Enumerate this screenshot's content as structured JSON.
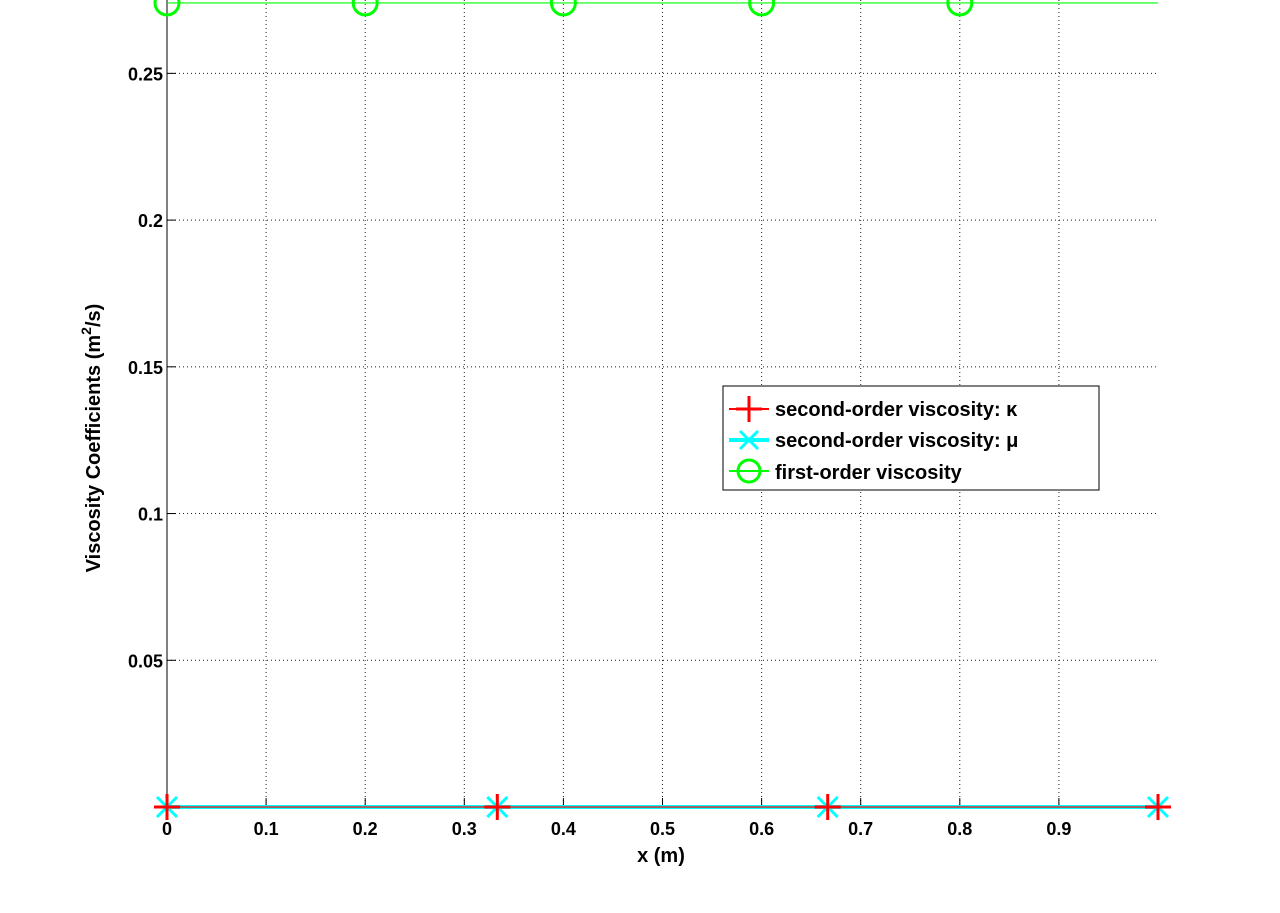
{
  "chart_data": {
    "type": "line",
    "xlabel": "x (m)",
    "ylabel": "Viscosity Coefficients (m",
    "ylabel_sup": "2",
    "ylabel_tail": "/s)",
    "xlim": [
      0,
      1
    ],
    "ylim": [
      0,
      0.275
    ],
    "xticks": [
      0,
      0.1,
      0.2,
      0.3,
      0.4,
      0.5,
      0.6,
      0.7,
      0.8,
      0.9
    ],
    "xtick_labels": [
      "0",
      "0.1",
      "0.2",
      "0.3",
      "0.4",
      "0.5",
      "0.6",
      "0.7",
      "0.8",
      "0.9"
    ],
    "yticks": [
      0.05,
      0.1,
      0.15,
      0.2,
      0.25
    ],
    "ytick_labels": [
      "0.05",
      "0.1",
      "0.15",
      "0.2",
      "0.25"
    ],
    "grid": true,
    "grid_style": "dotted",
    "legend_position": "center-right",
    "series": [
      {
        "name": "second-order viscosity: κ",
        "color": "#ff0000",
        "marker": "plus",
        "line_width": "thin",
        "line": {
          "x": [
            0,
            1
          ],
          "y": [
            0,
            0
          ]
        },
        "markers": {
          "x": [
            0,
            0.3333,
            0.6667,
            1.0
          ],
          "y": [
            0,
            0,
            0,
            0
          ]
        }
      },
      {
        "name": "second-order viscosity: μ",
        "color": "#00ffff",
        "marker": "x",
        "line_width": "thick",
        "line": {
          "x": [
            0,
            1
          ],
          "y": [
            0,
            0
          ]
        },
        "markers": {
          "x": [
            0,
            0.3333,
            0.6667,
            1.0
          ],
          "y": [
            0,
            0,
            0,
            0
          ]
        }
      },
      {
        "name": "first-order viscosity",
        "color": "#00ff00",
        "marker": "circle",
        "line_width": "thin",
        "line": {
          "x": [
            0,
            1
          ],
          "y": [
            0.274,
            0.274
          ]
        },
        "markers": {
          "x": [
            0,
            0.2,
            0.4,
            0.6,
            0.8
          ],
          "y": [
            0.274,
            0.274,
            0.274,
            0.274,
            0.274
          ]
        }
      }
    ]
  }
}
